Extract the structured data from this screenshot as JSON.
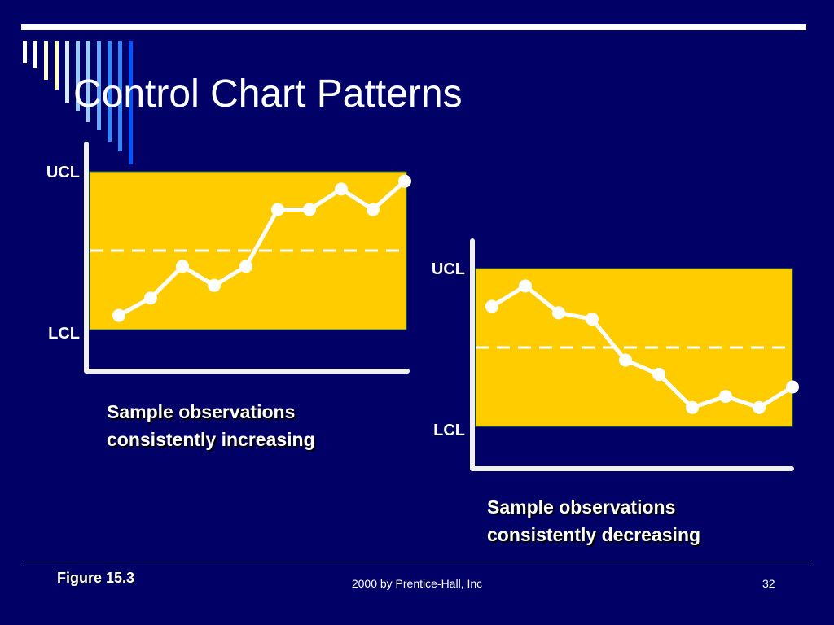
{
  "slide": {
    "title": "Control Chart Patterns",
    "figure_label": "Figure 15.3",
    "footer": "2000 by Prentice-Hall, Inc",
    "page_number": "32"
  },
  "colors": {
    "background": "#000066",
    "control_band": "#ffcc00",
    "line": "#ffffff",
    "decor_stripes": [
      "#ffffff",
      "#ffffcc",
      "#d8e8ff",
      "#99ccff",
      "#66aaff",
      "#3388ff",
      "#0055ff"
    ]
  },
  "chart_data": [
    {
      "type": "line",
      "band_labels": {
        "upper": "UCL",
        "lower": "LCL"
      },
      "caption": [
        "Sample observations",
        "consistently increasing"
      ],
      "values": [
        0.09,
        0.2,
        0.4,
        0.28,
        0.4,
        0.76,
        0.76,
        0.89,
        0.76,
        0.94
      ]
    },
    {
      "type": "line",
      "band_labels": {
        "upper": "UCL",
        "lower": "LCL"
      },
      "caption": [
        "Sample observations",
        "consistently decreasing"
      ],
      "values": [
        0.76,
        0.89,
        0.72,
        0.68,
        0.42,
        0.33,
        0.12,
        0.19,
        0.12,
        0.25
      ]
    }
  ]
}
